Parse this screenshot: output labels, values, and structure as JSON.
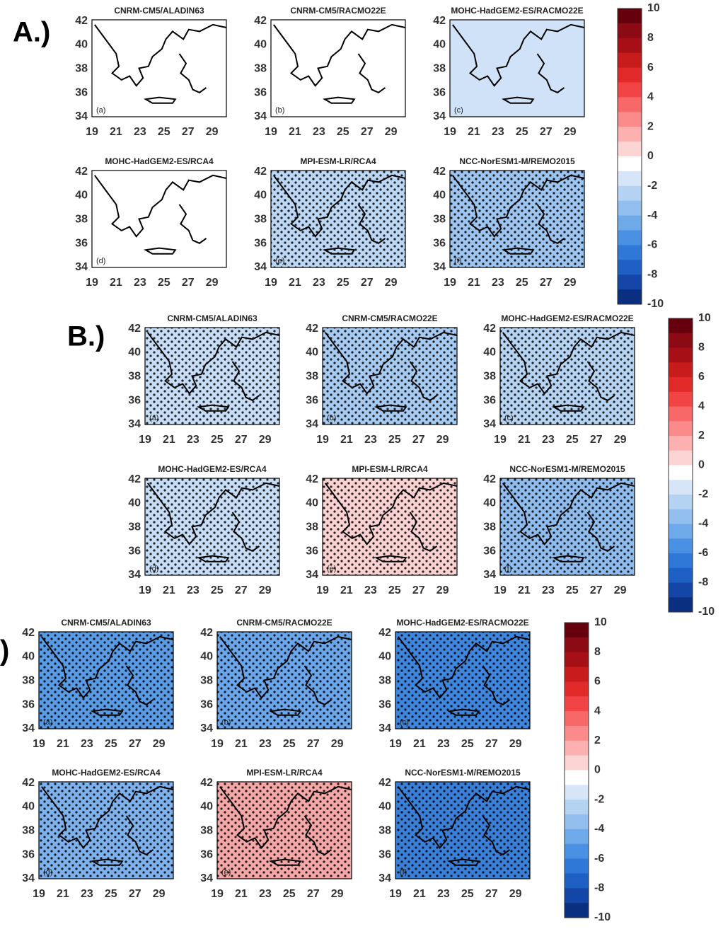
{
  "groups": [
    {
      "label": "A.)",
      "panels": [
        {
          "title": "CNRM-CM5/ALADIN63",
          "letter": "(a)"
        },
        {
          "title": "CNRM-CM5/RACMO22E",
          "letter": "(b)"
        },
        {
          "title": "MOHC-HadGEM2-ES/RACMO22E",
          "letter": "(c)"
        },
        {
          "title": "MOHC-HadGEM2-ES/RCA4",
          "letter": "(d)"
        },
        {
          "title": "MPI-ESM-LR/RCA4",
          "letter": "(e)"
        },
        {
          "title": "NCC-NorESM1-M/REMO2015",
          "letter": "(f)"
        }
      ],
      "xticks": [
        19,
        21,
        23,
        25,
        27,
        29
      ],
      "yticks": [
        34,
        36,
        38,
        40,
        42
      ],
      "colorbar_ticks": [
        10,
        8,
        6,
        4,
        2,
        0,
        -2,
        -4,
        -6,
        -8,
        -10
      ]
    },
    {
      "label": "B.)",
      "panels": [
        {
          "title": "CNRM-CM5/ALADIN63",
          "letter": "(a)"
        },
        {
          "title": "CNRM-CM5/RACMO22E",
          "letter": "(b)"
        },
        {
          "title": "MOHC-HadGEM2-ES/RACMO22E",
          "letter": "(c)"
        },
        {
          "title": "MOHC-HadGEM2-ES/RCA4",
          "letter": "(d)"
        },
        {
          "title": "MPI-ESM-LR/RCA4",
          "letter": "(e)"
        },
        {
          "title": "NCC-NorESM1-M/REMO2015",
          "letter": "(f)"
        }
      ],
      "xticks": [
        19,
        21,
        23,
        25,
        27,
        29
      ],
      "yticks": [
        34,
        36,
        38,
        40,
        42
      ],
      "colorbar_ticks": [
        10,
        8,
        6,
        4,
        2,
        0,
        -2,
        -4,
        -6,
        -8,
        -10
      ]
    },
    {
      "label": ")",
      "panels": [
        {
          "title": "CNRM-CM5/ALADIN63",
          "letter": "(a)"
        },
        {
          "title": "CNRM-CM5/RACMO22E",
          "letter": "(b)"
        },
        {
          "title": "MOHC-HadGEM2-ES/RACMO22E",
          "letter": "(c)"
        },
        {
          "title": "MOHC-HadGEM2-ES/RCA4",
          "letter": "(d)"
        },
        {
          "title": "MPI-ESM-LR/RCA4",
          "letter": "(e)"
        },
        {
          "title": "NCC-NorESM1-M/REMO2015",
          "letter": "(f)"
        }
      ],
      "xticks": [
        19,
        21,
        23,
        25,
        27,
        29
      ],
      "yticks": [
        34,
        36,
        38,
        40,
        42
      ],
      "colorbar_ticks": [
        10,
        8,
        6,
        4,
        2,
        0,
        -2,
        -4,
        -6,
        -8,
        -10
      ]
    }
  ]
}
